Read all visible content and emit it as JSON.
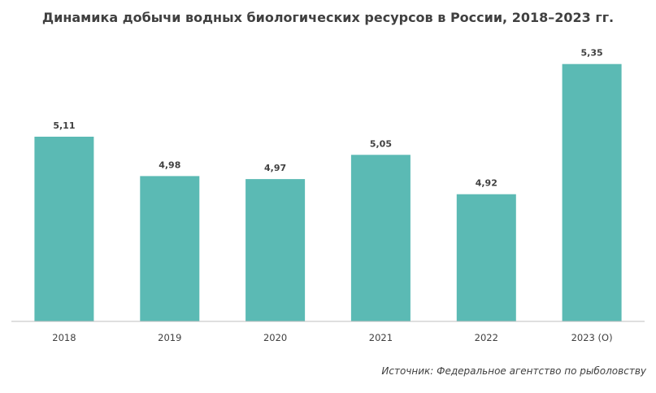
{
  "chart_data": {
    "type": "bar",
    "title": "Динамика добычи водных биологических ресурсов в России, 2018–2023  гг.",
    "categories": [
      "2018",
      "2019",
      "2020",
      "2021",
      "2022",
      "2023 (O)"
    ],
    "values": [
      5.11,
      4.98,
      4.97,
      5.05,
      4.92,
      5.35
    ],
    "data_labels": [
      "5,11",
      "4,98",
      "4,97",
      "5,05",
      "4,92",
      "5,35"
    ],
    "xlabel": "",
    "ylabel": "",
    "ylim": [
      4.5,
      5.36
    ],
    "grid": false,
    "legend": "none",
    "color": "#5bbab4"
  },
  "source": "Источник: Федеральное агентство по рыболовству"
}
